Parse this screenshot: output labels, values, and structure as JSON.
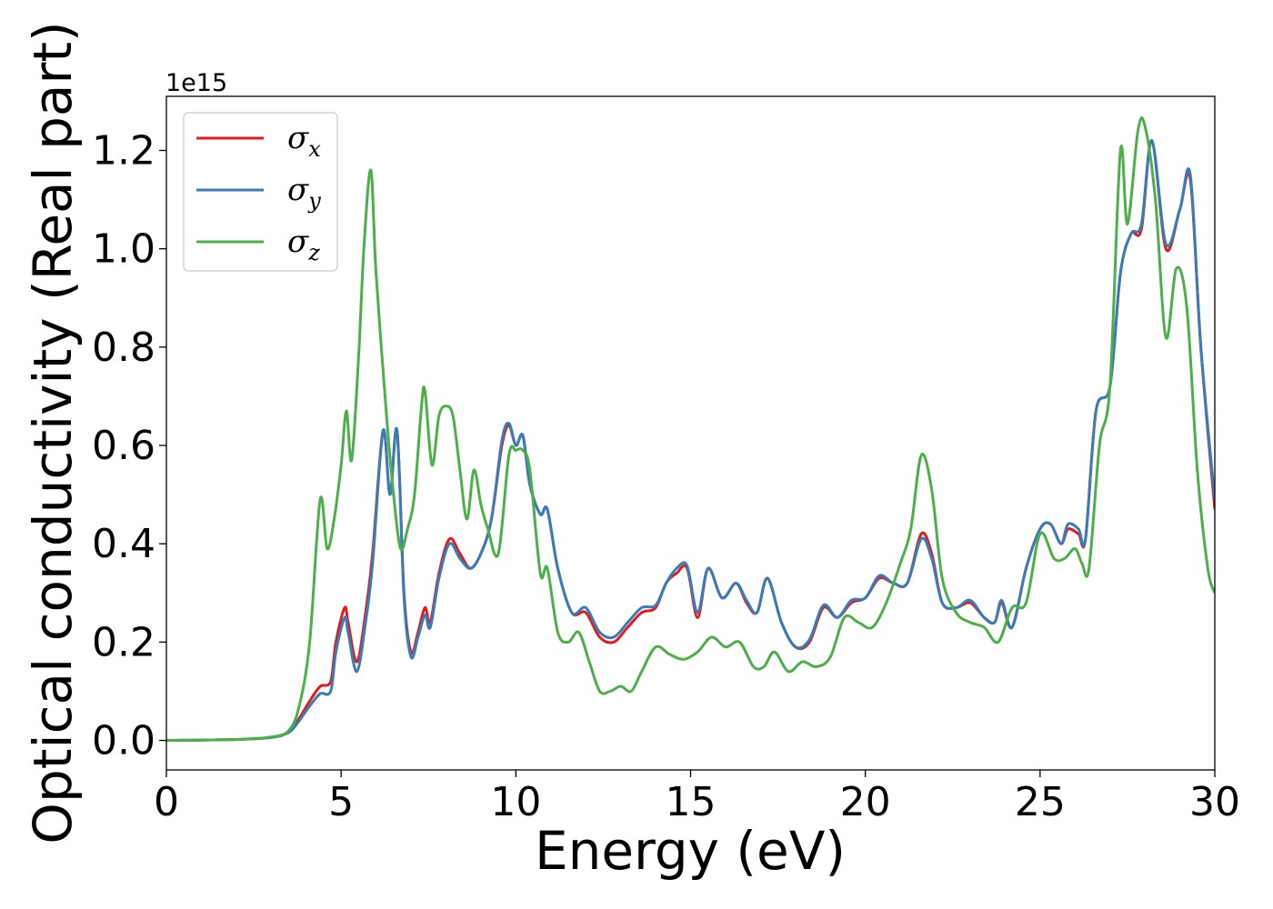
{
  "chart_data": {
    "type": "line",
    "title": "",
    "xlabel": "Energy (eV)",
    "ylabel": "Optical conductivity (Real part)",
    "y_offset_label": "1e15",
    "xlim": [
      0,
      30
    ],
    "ylim": [
      -0.06,
      1.31
    ],
    "xticks": [
      0,
      5,
      10,
      15,
      20,
      25,
      30
    ],
    "xtick_labels": [
      "0",
      "5",
      "10",
      "15",
      "20",
      "25",
      "30"
    ],
    "yticks": [
      0.0,
      0.2,
      0.4,
      0.6,
      0.8,
      1.0,
      1.2
    ],
    "ytick_labels": [
      "0.0",
      "0.2",
      "0.4",
      "0.6",
      "0.8",
      "1.0",
      "1.2"
    ],
    "grid": false,
    "legend_position": "top-left",
    "series": [
      {
        "name": "σx",
        "name_base": "σ",
        "name_sub": "x",
        "color": "#e41a1c",
        "x": [
          0,
          2,
          3,
          3.5,
          3.8,
          4.1,
          4.4,
          4.7,
          4.85,
          5.1,
          5.2,
          5.45,
          5.7,
          5.9,
          6.2,
          6.4,
          6.6,
          6.8,
          7.0,
          7.2,
          7.4,
          7.55,
          7.8,
          8.1,
          8.4,
          8.7,
          9.0,
          9.3,
          9.6,
          9.8,
          10.0,
          10.2,
          10.4,
          10.7,
          10.9,
          11.2,
          11.6,
          12.0,
          12.4,
          12.8,
          13.2,
          13.6,
          14.0,
          14.3,
          14.6,
          14.9,
          15.2,
          15.5,
          15.9,
          16.3,
          16.6,
          16.9,
          17.2,
          17.6,
          18.0,
          18.4,
          18.8,
          19.2,
          19.6,
          20.0,
          20.4,
          20.8,
          21.2,
          21.6,
          21.9,
          22.2,
          22.6,
          23.0,
          23.4,
          23.7,
          23.9,
          24.2,
          24.6,
          25.0,
          25.3,
          25.6,
          25.8,
          26.1,
          26.3,
          26.6,
          27.0,
          27.3,
          27.6,
          27.9,
          28.2,
          28.6,
          29.0,
          29.3,
          29.6,
          30.0
        ],
        "y": [
          0,
          0.002,
          0.006,
          0.018,
          0.045,
          0.08,
          0.11,
          0.12,
          0.2,
          0.27,
          0.24,
          0.16,
          0.26,
          0.38,
          0.63,
          0.5,
          0.63,
          0.3,
          0.18,
          0.22,
          0.27,
          0.24,
          0.34,
          0.41,
          0.38,
          0.35,
          0.38,
          0.45,
          0.6,
          0.64,
          0.6,
          0.62,
          0.52,
          0.46,
          0.47,
          0.35,
          0.26,
          0.26,
          0.21,
          0.2,
          0.23,
          0.26,
          0.27,
          0.32,
          0.34,
          0.35,
          0.25,
          0.35,
          0.29,
          0.32,
          0.28,
          0.26,
          0.33,
          0.24,
          0.19,
          0.2,
          0.27,
          0.25,
          0.28,
          0.29,
          0.33,
          0.32,
          0.32,
          0.42,
          0.38,
          0.28,
          0.27,
          0.28,
          0.25,
          0.24,
          0.28,
          0.23,
          0.35,
          0.43,
          0.44,
          0.4,
          0.43,
          0.42,
          0.41,
          0.67,
          0.72,
          0.95,
          1.03,
          1.04,
          1.22,
          1.0,
          1.08,
          1.14,
          0.8,
          0.47
        ]
      },
      {
        "name": "σy",
        "name_base": "σ",
        "name_sub": "y",
        "color": "#377eb8",
        "x": [
          0,
          2,
          3,
          3.5,
          3.8,
          4.1,
          4.4,
          4.7,
          4.85,
          5.1,
          5.2,
          5.45,
          5.7,
          5.9,
          6.2,
          6.4,
          6.6,
          6.8,
          7.0,
          7.2,
          7.4,
          7.55,
          7.8,
          8.1,
          8.4,
          8.7,
          9.0,
          9.3,
          9.6,
          9.8,
          10.0,
          10.2,
          10.4,
          10.7,
          10.9,
          11.2,
          11.6,
          12.0,
          12.4,
          12.8,
          13.2,
          13.6,
          14.0,
          14.3,
          14.6,
          14.9,
          15.2,
          15.5,
          15.9,
          16.3,
          16.6,
          16.9,
          17.2,
          17.6,
          18.0,
          18.4,
          18.8,
          19.2,
          19.6,
          20.0,
          20.4,
          20.8,
          21.2,
          21.6,
          21.9,
          22.2,
          22.6,
          23.0,
          23.4,
          23.7,
          23.9,
          24.2,
          24.6,
          25.0,
          25.3,
          25.6,
          25.8,
          26.1,
          26.3,
          26.6,
          27.0,
          27.3,
          27.6,
          27.9,
          28.2,
          28.6,
          29.0,
          29.3,
          29.6,
          30.0
        ],
        "y": [
          0,
          0.002,
          0.006,
          0.016,
          0.04,
          0.07,
          0.095,
          0.1,
          0.18,
          0.25,
          0.22,
          0.14,
          0.24,
          0.36,
          0.63,
          0.5,
          0.63,
          0.29,
          0.17,
          0.21,
          0.255,
          0.23,
          0.33,
          0.4,
          0.37,
          0.35,
          0.38,
          0.45,
          0.61,
          0.645,
          0.6,
          0.62,
          0.52,
          0.46,
          0.47,
          0.35,
          0.26,
          0.27,
          0.22,
          0.21,
          0.24,
          0.27,
          0.275,
          0.32,
          0.35,
          0.355,
          0.26,
          0.35,
          0.29,
          0.32,
          0.285,
          0.26,
          0.33,
          0.24,
          0.19,
          0.205,
          0.275,
          0.25,
          0.285,
          0.29,
          0.335,
          0.32,
          0.32,
          0.41,
          0.37,
          0.28,
          0.27,
          0.285,
          0.25,
          0.24,
          0.285,
          0.23,
          0.35,
          0.43,
          0.44,
          0.4,
          0.44,
          0.43,
          0.41,
          0.67,
          0.72,
          0.95,
          1.03,
          1.05,
          1.22,
          1.01,
          1.08,
          1.15,
          0.8,
          0.49
        ]
      },
      {
        "name": "σz",
        "name_base": "σ",
        "name_sub": "z",
        "color": "#4daf4a",
        "x": [
          0,
          2,
          3,
          3.5,
          3.8,
          4.1,
          4.4,
          4.6,
          4.8,
          5.0,
          5.15,
          5.3,
          5.5,
          5.65,
          5.85,
          6.0,
          6.3,
          6.5,
          6.7,
          6.9,
          7.1,
          7.3,
          7.4,
          7.6,
          7.8,
          8.0,
          8.2,
          8.4,
          8.6,
          8.8,
          9.0,
          9.2,
          9.5,
          9.8,
          10.0,
          10.2,
          10.4,
          10.7,
          10.9,
          11.2,
          11.5,
          11.8,
          12.1,
          12.4,
          12.7,
          13.0,
          13.3,
          13.6,
          14.0,
          14.4,
          14.8,
          15.2,
          15.6,
          16.0,
          16.4,
          16.8,
          17.1,
          17.4,
          17.8,
          18.2,
          18.6,
          19.0,
          19.4,
          19.8,
          20.2,
          20.6,
          21.0,
          21.3,
          21.6,
          21.9,
          22.2,
          22.6,
          23.0,
          23.4,
          23.8,
          24.2,
          24.6,
          25.0,
          25.4,
          25.7,
          26.0,
          26.2,
          26.4,
          26.7,
          27.0,
          27.3,
          27.5,
          27.8,
          28.0,
          28.3,
          28.6,
          28.9,
          29.2,
          29.5,
          29.8,
          30.0
        ],
        "y": [
          0,
          0.002,
          0.007,
          0.02,
          0.07,
          0.2,
          0.49,
          0.39,
          0.45,
          0.56,
          0.67,
          0.57,
          0.78,
          1.0,
          1.16,
          0.95,
          0.66,
          0.5,
          0.39,
          0.43,
          0.5,
          0.68,
          0.71,
          0.56,
          0.66,
          0.68,
          0.66,
          0.55,
          0.45,
          0.55,
          0.48,
          0.43,
          0.38,
          0.58,
          0.59,
          0.59,
          0.55,
          0.34,
          0.35,
          0.22,
          0.2,
          0.22,
          0.16,
          0.1,
          0.1,
          0.11,
          0.1,
          0.14,
          0.19,
          0.175,
          0.165,
          0.18,
          0.21,
          0.19,
          0.2,
          0.15,
          0.15,
          0.18,
          0.14,
          0.16,
          0.15,
          0.17,
          0.25,
          0.24,
          0.23,
          0.28,
          0.36,
          0.43,
          0.58,
          0.51,
          0.33,
          0.26,
          0.24,
          0.23,
          0.2,
          0.27,
          0.28,
          0.42,
          0.37,
          0.37,
          0.39,
          0.36,
          0.35,
          0.6,
          0.72,
          1.2,
          1.05,
          1.24,
          1.25,
          1.1,
          0.82,
          0.96,
          0.88,
          0.55,
          0.35,
          0.3
        ]
      }
    ]
  }
}
